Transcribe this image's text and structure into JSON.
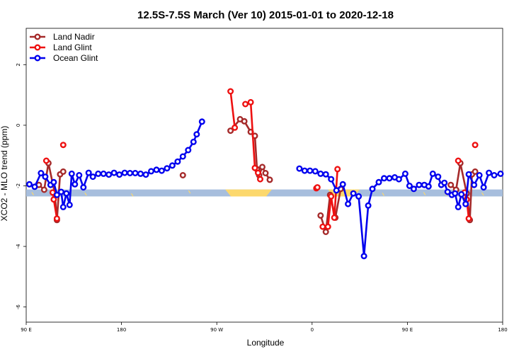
{
  "chart_data": {
    "type": "line",
    "title": "12.5S-7.5S March (Ver 10)   2015-01-01 to 2020-12-18",
    "xlabel": "Longitude",
    "ylabel": "XCO2 - MLO trend (ppm)",
    "x_ticks": [
      {
        "value": 90,
        "label": "90 E"
      },
      {
        "value": 180,
        "label": "180"
      },
      {
        "value": 270,
        "label": "90 W"
      },
      {
        "value": 360,
        "label": "0"
      },
      {
        "value": 450,
        "label": "90 E"
      },
      {
        "value": 540,
        "label": "180"
      }
    ],
    "y_ticks": [
      {
        "value": 2,
        "label": "2"
      },
      {
        "value": 0,
        "label": "0"
      },
      {
        "value": -2,
        "label": "-2"
      },
      {
        "value": -4,
        "label": "-4"
      },
      {
        "value": -6,
        "label": "-6"
      }
    ],
    "xlim": [
      90,
      540
    ],
    "ylim": [
      -6.5,
      3.2
    ],
    "legend_position": "top-left",
    "band": {
      "y_low": -2.35,
      "y_high": -2.12,
      "color": "#a7bedd",
      "highlight_color": "#fcd86d"
    },
    "band_highlights": [
      [
        278,
        322
      ],
      [
        375,
        405
      ]
    ],
    "band_ticks": [
      [
        96,
        -2.26
      ],
      [
        114,
        -2.16
      ],
      [
        128,
        -2.27
      ],
      [
        146,
        -2.27
      ],
      [
        190,
        -2.3
      ],
      [
        244,
        -2.2
      ],
      [
        396,
        -2.25
      ],
      [
        402,
        -2.32
      ],
      [
        427,
        -2.28
      ],
      [
        466,
        -2.26
      ],
      [
        486,
        -2.28
      ],
      [
        505,
        -2.25
      ],
      [
        521,
        -2.27
      ]
    ],
    "series": [
      {
        "name": "Land Nadir",
        "color": "#a52a2a",
        "segments": [
          [
            [
              102,
              -1.97
            ],
            [
              107,
              -2.13
            ],
            [
              111,
              -1.25
            ],
            [
              117,
              -2.25
            ],
            [
              119,
              -3.13
            ],
            [
              122,
              -1.62
            ],
            [
              125,
              -1.53
            ]
          ],
          [
            [
              238,
              -1.65
            ]
          ],
          [
            [
              283,
              -0.18
            ],
            [
              292,
              0.2
            ],
            [
              296,
              0.13
            ],
            [
              302,
              -0.22
            ],
            [
              306,
              -0.35
            ],
            [
              308,
              -1.45
            ],
            [
              310,
              -1.65
            ],
            [
              313,
              -1.38
            ],
            [
              316,
              -1.58
            ],
            [
              320,
              -1.8
            ]
          ],
          [
            [
              368,
              -2.98
            ],
            [
              373,
              -3.52
            ],
            [
              377,
              -2.3
            ],
            [
              382,
              -3.05
            ],
            [
              387,
              -2.1
            ]
          ],
          [
            [
              491,
              -1.97
            ],
            [
              496,
              -2.13
            ],
            [
              500,
              -1.25
            ],
            [
              506,
              -2.25
            ],
            [
              509,
              -3.13
            ],
            [
              511,
              -1.62
            ],
            [
              514,
              -1.53
            ]
          ]
        ]
      },
      {
        "name": "Land Glint",
        "color": "#ee1111",
        "segments": [
          [
            [
              109,
              -1.17
            ]
          ],
          [
            [
              115,
              -2.22
            ],
            [
              116,
              -2.45
            ],
            [
              119,
              -3.08
            ]
          ],
          [
            [
              125,
              -0.65
            ]
          ],
          [
            [
              283,
              1.12
            ],
            [
              287,
              -0.08
            ]
          ],
          [
            [
              297,
              0.7
            ],
            [
              302,
              0.76
            ],
            [
              306,
              -1.41
            ],
            [
              309,
              -1.57
            ],
            [
              311,
              -1.78
            ]
          ],
          [
            [
              364,
              -2.08
            ],
            [
              365,
              -2.05
            ]
          ],
          [
            [
              370,
              -3.35
            ],
            [
              375,
              -3.35
            ],
            [
              378,
              -2.35
            ],
            [
              381,
              -3.05
            ],
            [
              384,
              -1.45
            ]
          ],
          [
            [
              498,
              -1.17
            ]
          ],
          [
            [
              504,
              -2.22
            ],
            [
              506,
              -2.45
            ],
            [
              508,
              -3.08
            ]
          ],
          [
            [
              514,
              -0.65
            ]
          ]
        ]
      },
      {
        "name": "Ocean Glint",
        "color": "#0000ee",
        "segments": [
          [
            [
              93,
              -1.95
            ],
            [
              98,
              -2.03
            ],
            [
              104,
              -1.58
            ],
            [
              108,
              -1.7
            ],
            [
              113,
              -1.97
            ],
            [
              116,
              -1.88
            ],
            [
              119,
              -2.3
            ],
            [
              123,
              -2.2
            ],
            [
              125,
              -2.7
            ],
            [
              128,
              -2.25
            ],
            [
              131,
              -2.63
            ],
            [
              133,
              -1.6
            ],
            [
              136,
              -1.95
            ],
            [
              140,
              -1.65
            ],
            [
              144,
              -2.05
            ],
            [
              149,
              -1.57
            ],
            [
              153,
              -1.7
            ],
            [
              158,
              -1.6
            ],
            [
              163,
              -1.6
            ],
            [
              168,
              -1.63
            ],
            [
              173,
              -1.57
            ],
            [
              178,
              -1.63
            ],
            [
              183,
              -1.57
            ],
            [
              188,
              -1.58
            ],
            [
              193,
              -1.58
            ],
            [
              198,
              -1.6
            ],
            [
              203,
              -1.63
            ],
            [
              208,
              -1.52
            ],
            [
              213,
              -1.47
            ],
            [
              218,
              -1.5
            ],
            [
              223,
              -1.42
            ],
            [
              228,
              -1.33
            ],
            [
              233,
              -1.2
            ],
            [
              238,
              -1.03
            ],
            [
              243,
              -0.82
            ],
            [
              248,
              -0.55
            ],
            [
              251,
              -0.3
            ],
            [
              256,
              0.12
            ]
          ],
          [
            [
              348,
              -1.43
            ],
            [
              353,
              -1.5
            ],
            [
              358,
              -1.5
            ],
            [
              363,
              -1.52
            ],
            [
              368,
              -1.6
            ],
            [
              373,
              -1.62
            ],
            [
              378,
              -1.78
            ],
            [
              383,
              -2.15
            ],
            [
              389,
              -1.95
            ],
            [
              394,
              -2.6
            ],
            [
              399,
              -2.25
            ],
            [
              404,
              -2.35
            ],
            [
              409,
              -4.32
            ],
            [
              413,
              -2.65
            ],
            [
              417,
              -2.1
            ],
            [
              423,
              -1.88
            ],
            [
              428,
              -1.75
            ],
            [
              433,
              -1.75
            ],
            [
              438,
              -1.72
            ],
            [
              442,
              -1.78
            ],
            [
              448,
              -1.6
            ],
            [
              452,
              -2.0
            ],
            [
              456,
              -2.1
            ],
            [
              461,
              -1.97
            ],
            [
              466,
              -1.97
            ],
            [
              470,
              -2.02
            ],
            [
              474,
              -1.6
            ],
            [
              479,
              -1.7
            ],
            [
              482,
              -1.97
            ],
            [
              485,
              -1.9
            ],
            [
              488,
              -2.2
            ],
            [
              492,
              -2.3
            ],
            [
              495,
              -2.25
            ],
            [
              498,
              -2.7
            ],
            [
              501,
              -2.28
            ],
            [
              505,
              -2.6
            ],
            [
              508,
              -1.62
            ],
            [
              513,
              -1.97
            ],
            [
              518,
              -1.65
            ],
            [
              522,
              -2.05
            ],
            [
              527,
              -1.57
            ],
            [
              532,
              -1.65
            ],
            [
              538,
              -1.6
            ]
          ]
        ]
      }
    ]
  }
}
